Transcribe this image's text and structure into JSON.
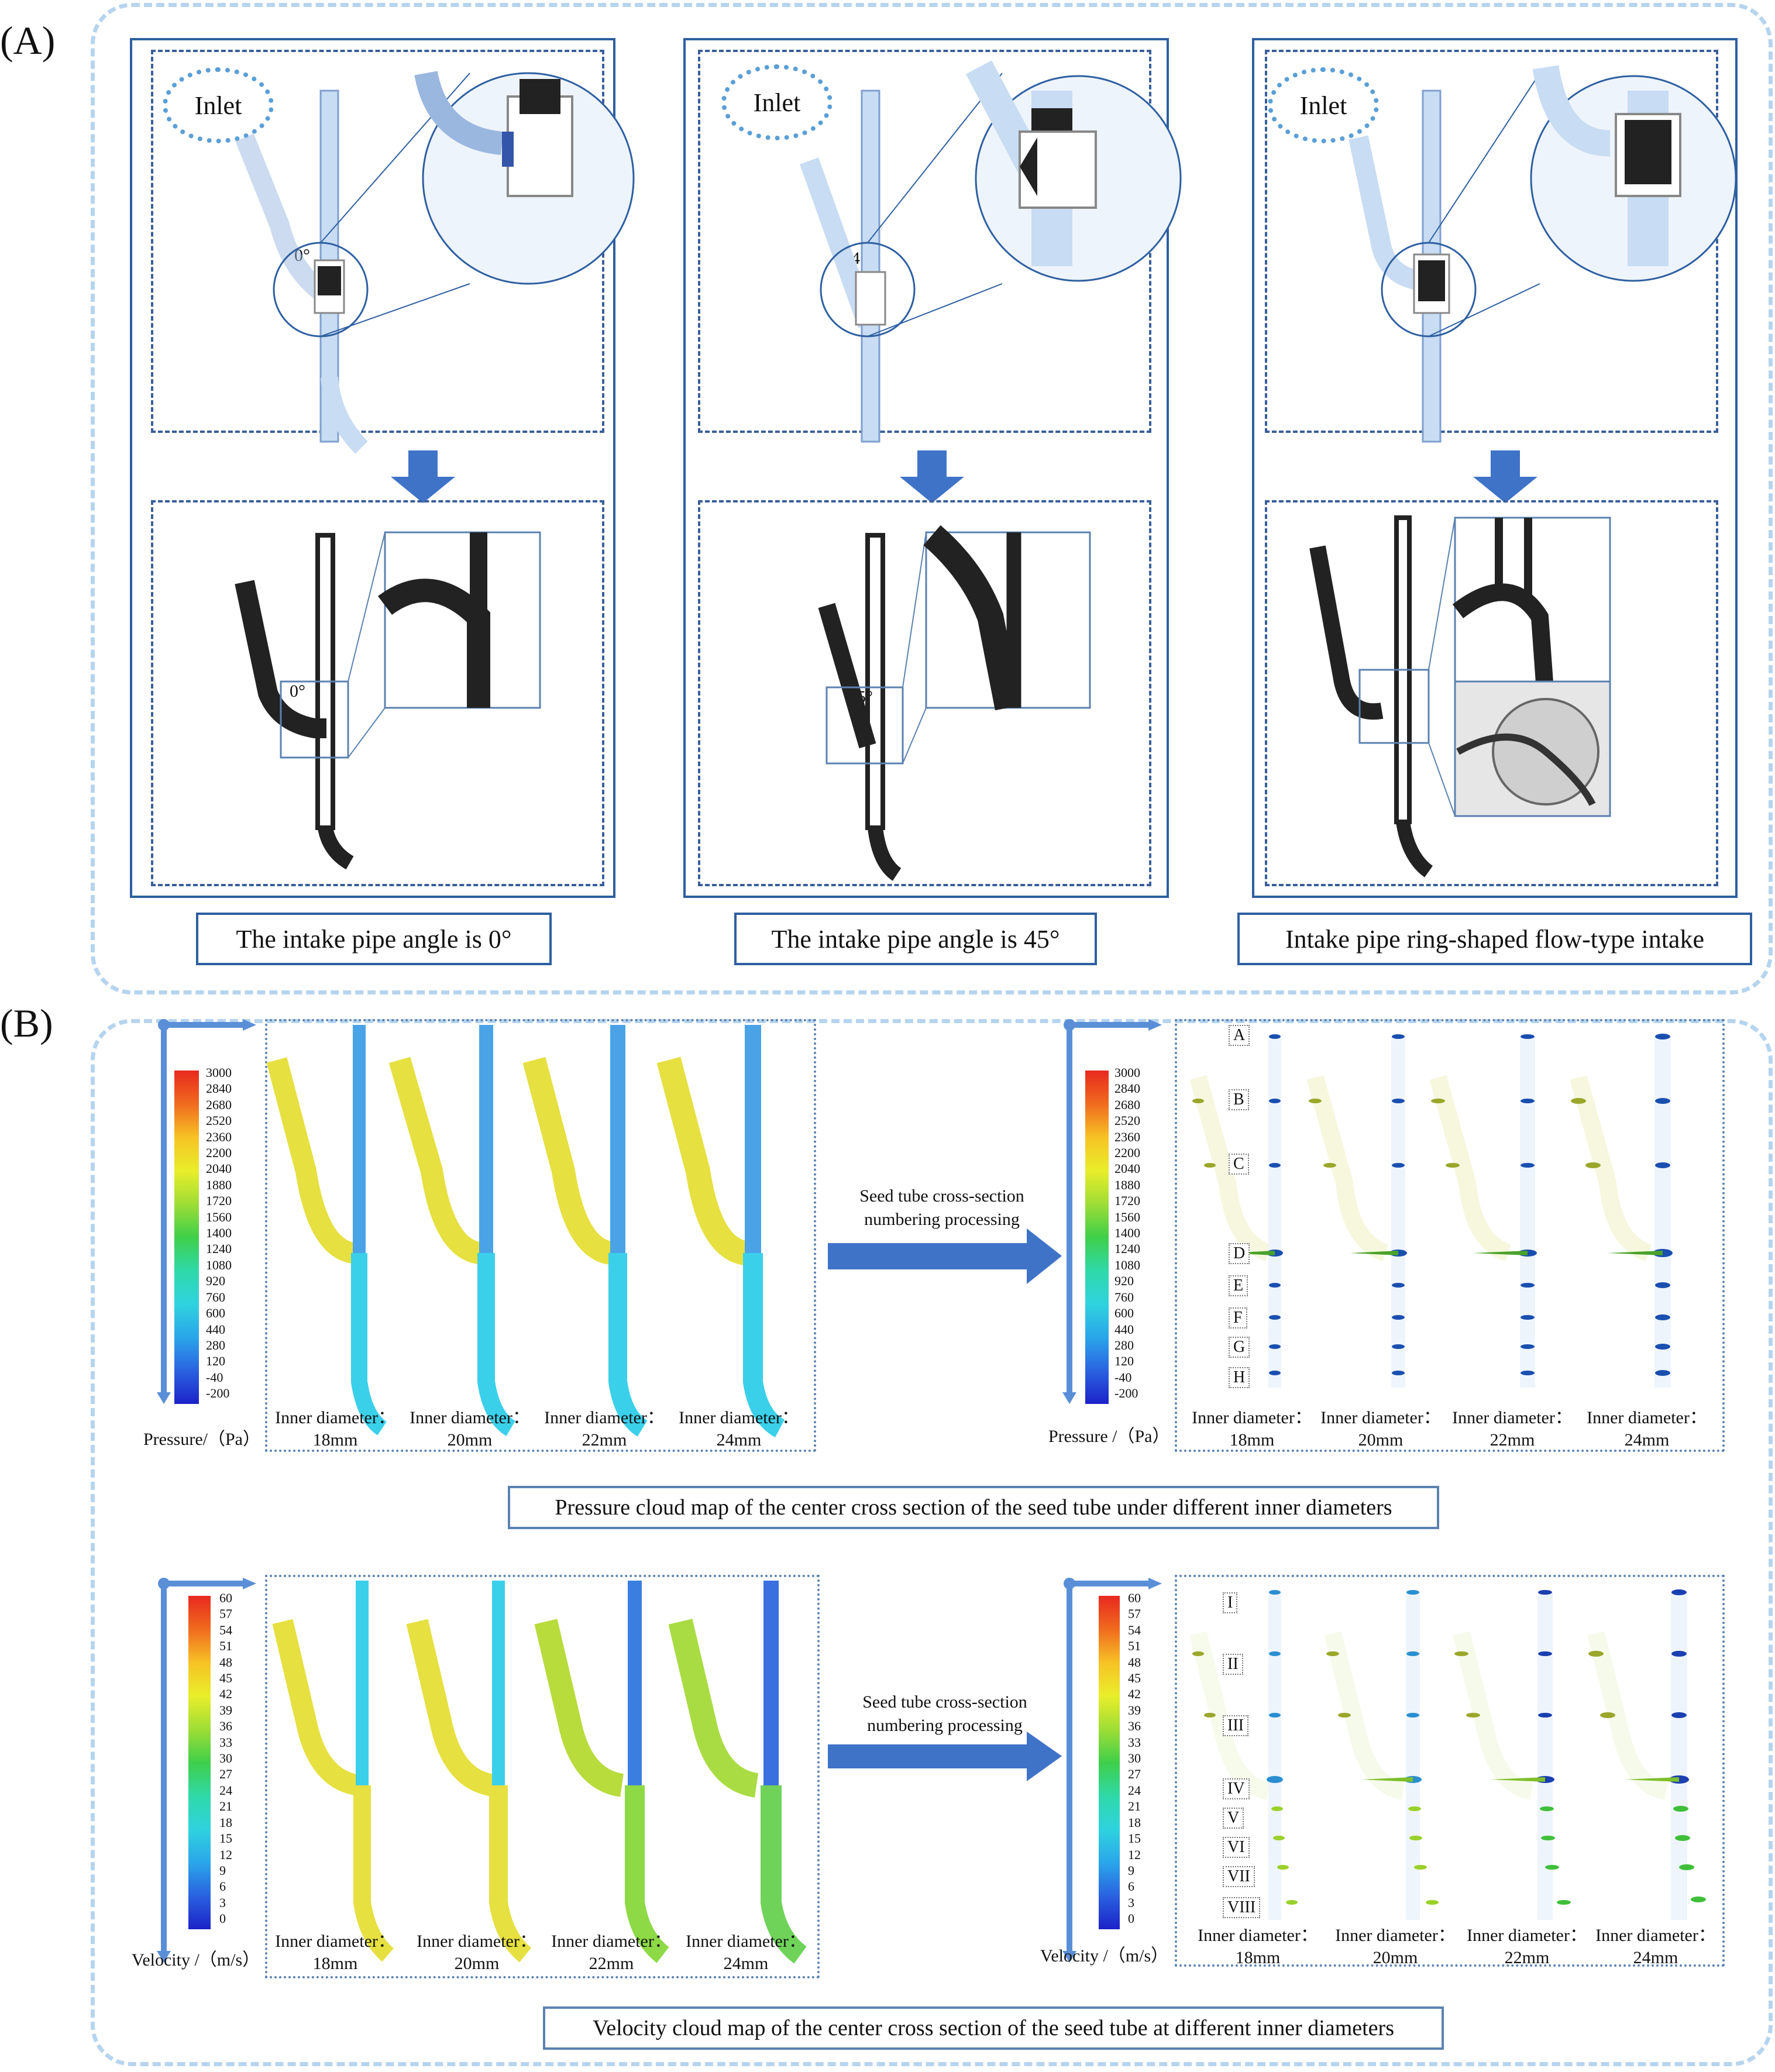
{
  "panel_a": {
    "label": "(A)",
    "bubble_text": "Inlet",
    "columns": [
      {
        "angle_label": "0°",
        "caption": "The intake pipe angle is 0°"
      },
      {
        "angle_label": "45°",
        "caption": "The intake pipe angle is 45°"
      },
      {
        "angle_label": "",
        "caption": "Intake pipe ring-shaped flow-type intake"
      }
    ]
  },
  "panel_b": {
    "label": "(B)",
    "pressure": {
      "unit_label_left": "Pressure/（Pa）",
      "unit_label_right": "Pressure /（Pa）",
      "colorbar_ticks": [
        "3000",
        "2840",
        "2680",
        "2520",
        "2360",
        "2200",
        "2040",
        "1880",
        "1720",
        "1560",
        "1400",
        "1240",
        "1080",
        "920",
        "760",
        "600",
        "440",
        "280",
        "120",
        "-40",
        "-200"
      ],
      "arrow_text": [
        "Seed tube cross-section",
        "numbering processing"
      ],
      "section_labels": [
        "A",
        "B",
        "C",
        "D",
        "E",
        "F",
        "G",
        "H"
      ],
      "caption": "Pressure cloud map of the center cross section of the seed tube under different inner diameters"
    },
    "velocity": {
      "unit_label": "Velocity /（m/s）",
      "colorbar_ticks": [
        "60",
        "57",
        "54",
        "51",
        "48",
        "45",
        "42",
        "39",
        "36",
        "33",
        "30",
        "27",
        "24",
        "21",
        "18",
        "15",
        "12",
        "9",
        "6",
        "3",
        "0"
      ],
      "arrow_text": [
        "Seed tube cross-section",
        "numbering processing"
      ],
      "section_labels": [
        "I",
        "II",
        "III",
        "IV",
        "V",
        "VI",
        "VII",
        "VIII"
      ],
      "caption": "Velocity cloud map of the center cross section of the seed tube at different inner diameters"
    },
    "diameters": [
      {
        "label": "Inner diameter：",
        "value": "18mm"
      },
      {
        "label": "Inner diameter：",
        "value": "20mm"
      },
      {
        "label": "Inner diameter：",
        "value": "22mm"
      },
      {
        "label": "Inner diameter：",
        "value": "24mm"
      }
    ],
    "colors": {
      "pressure_field": "#e6e040",
      "tube_blue": "#4aa3e6",
      "low_blue": "#3ad0ea",
      "arrow": "#3f73c8"
    }
  }
}
